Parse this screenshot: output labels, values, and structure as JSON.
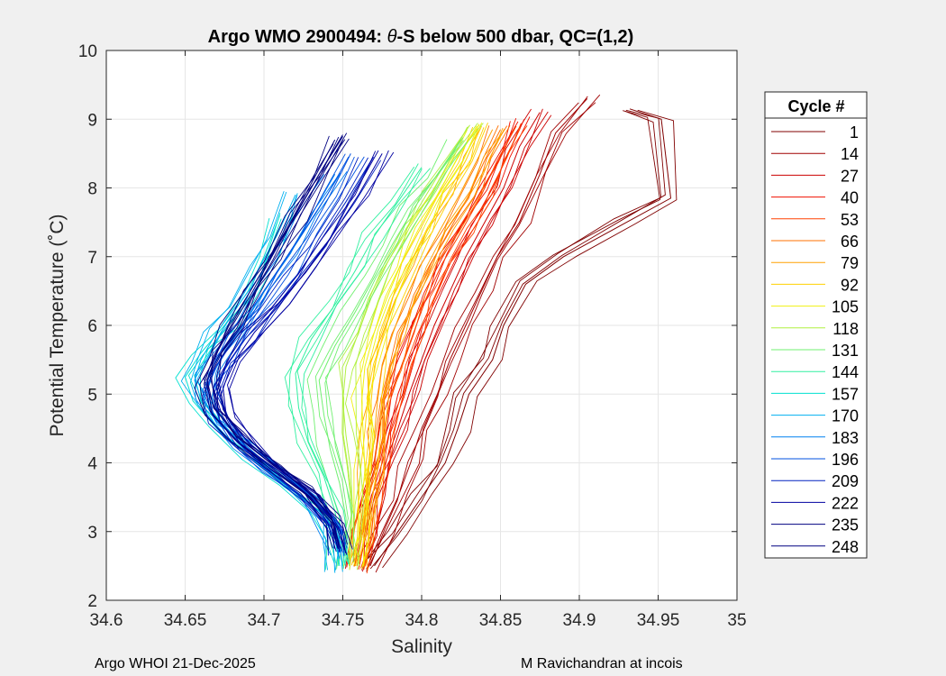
{
  "chart_data": {
    "type": "line",
    "title_prefix": "Argo WMO 2900494: ",
    "title_symbol": "θ",
    "title_suffix": "-S below 500 dbar,  QC=(1,2)",
    "xlabel": "Salinity",
    "ylabel": "Potential Temperature (˚C)",
    "xlim": [
      34.6,
      35
    ],
    "ylim": [
      2,
      10
    ],
    "xticks": [
      "34.6",
      "34.65",
      "34.7",
      "34.75",
      "34.8",
      "34.85",
      "34.9",
      "34.95",
      "35"
    ],
    "yticks": [
      "2",
      "3",
      "4",
      "5",
      "6",
      "7",
      "8",
      "9",
      "10"
    ],
    "grid": true,
    "legend_title": "Cycle #",
    "legend_position": "outside-right",
    "series": [
      {
        "name": "1",
        "color": "#800000",
        "points": [
          [
            34.932,
            9.15
          ],
          [
            34.952,
            9.0
          ],
          [
            34.958,
            7.85
          ],
          [
            34.93,
            7.5
          ],
          [
            34.89,
            7.0
          ],
          [
            34.866,
            6.6
          ],
          [
            34.852,
            6.0
          ],
          [
            34.845,
            5.5
          ],
          [
            34.83,
            5.0
          ],
          [
            34.823,
            4.5
          ],
          [
            34.815,
            4.0
          ],
          [
            34.8,
            3.5
          ],
          [
            34.785,
            3.0
          ],
          [
            34.77,
            2.5
          ]
        ]
      },
      {
        "name": "14",
        "color": "#a00000",
        "points": [
          [
            34.905,
            9.3
          ],
          [
            34.885,
            8.8
          ],
          [
            34.875,
            8.2
          ],
          [
            34.862,
            7.5
          ],
          [
            34.848,
            7.0
          ],
          [
            34.838,
            6.5
          ],
          [
            34.828,
            6.0
          ],
          [
            34.818,
            5.5
          ],
          [
            34.81,
            5.0
          ],
          [
            34.8,
            4.5
          ],
          [
            34.793,
            4.0
          ],
          [
            34.785,
            3.5
          ],
          [
            34.775,
            3.0
          ],
          [
            34.765,
            2.45
          ]
        ]
      },
      {
        "name": "27",
        "color": "#cc0000",
        "points": [
          [
            34.875,
            9.1
          ],
          [
            34.862,
            8.6
          ],
          [
            34.852,
            8.0
          ],
          [
            34.84,
            7.5
          ],
          [
            34.828,
            7.0
          ],
          [
            34.818,
            6.5
          ],
          [
            34.808,
            6.0
          ],
          [
            34.8,
            5.5
          ],
          [
            34.792,
            5.0
          ],
          [
            34.785,
            4.5
          ],
          [
            34.777,
            4.0
          ],
          [
            34.77,
            3.5
          ],
          [
            34.765,
            3.0
          ],
          [
            34.76,
            2.45
          ]
        ]
      },
      {
        "name": "40",
        "color": "#f01000",
        "points": [
          [
            34.865,
            9.0
          ],
          [
            34.855,
            8.5
          ],
          [
            34.845,
            8.0
          ],
          [
            34.833,
            7.5
          ],
          [
            34.82,
            7.0
          ],
          [
            34.81,
            6.5
          ],
          [
            34.8,
            6.0
          ],
          [
            34.793,
            5.5
          ],
          [
            34.785,
            5.0
          ],
          [
            34.78,
            4.5
          ],
          [
            34.775,
            4.0
          ],
          [
            34.768,
            3.5
          ],
          [
            34.762,
            3.0
          ],
          [
            34.758,
            2.5
          ]
        ]
      },
      {
        "name": "53",
        "color": "#ff4000",
        "points": [
          [
            34.86,
            8.9
          ],
          [
            34.848,
            8.4
          ],
          [
            34.838,
            7.9
          ],
          [
            34.826,
            7.4
          ],
          [
            34.813,
            6.9
          ],
          [
            34.803,
            6.4
          ],
          [
            34.795,
            5.9
          ],
          [
            34.787,
            5.4
          ],
          [
            34.78,
            4.9
          ],
          [
            34.776,
            4.4
          ],
          [
            34.772,
            3.9
          ],
          [
            34.768,
            3.4
          ],
          [
            34.764,
            2.9
          ],
          [
            34.76,
            2.45
          ]
        ]
      },
      {
        "name": "66",
        "color": "#ff7000",
        "points": [
          [
            34.85,
            8.85
          ],
          [
            34.84,
            8.4
          ],
          [
            34.83,
            7.9
          ],
          [
            34.818,
            7.4
          ],
          [
            34.806,
            6.9
          ],
          [
            34.796,
            6.4
          ],
          [
            34.788,
            5.9
          ],
          [
            34.78,
            5.4
          ],
          [
            34.775,
            4.9
          ],
          [
            34.772,
            4.4
          ],
          [
            34.77,
            3.9
          ],
          [
            34.766,
            3.4
          ],
          [
            34.762,
            2.9
          ],
          [
            34.759,
            2.5
          ]
        ]
      },
      {
        "name": "79",
        "color": "#ffa000",
        "points": [
          [
            34.845,
            8.85
          ],
          [
            34.835,
            8.4
          ],
          [
            34.824,
            7.9
          ],
          [
            34.812,
            7.4
          ],
          [
            34.8,
            6.9
          ],
          [
            34.79,
            6.4
          ],
          [
            34.782,
            5.9
          ],
          [
            34.775,
            5.4
          ],
          [
            34.772,
            4.9
          ],
          [
            34.77,
            4.4
          ],
          [
            34.768,
            3.9
          ],
          [
            34.765,
            3.4
          ],
          [
            34.762,
            2.9
          ],
          [
            34.758,
            2.5
          ]
        ]
      },
      {
        "name": "92",
        "color": "#ffd000",
        "points": [
          [
            34.838,
            8.9
          ],
          [
            34.828,
            8.4
          ],
          [
            34.816,
            7.9
          ],
          [
            34.804,
            7.4
          ],
          [
            34.793,
            6.9
          ],
          [
            34.784,
            6.4
          ],
          [
            34.776,
            5.9
          ],
          [
            34.77,
            5.4
          ],
          [
            34.768,
            4.9
          ],
          [
            34.768,
            4.4
          ],
          [
            34.766,
            3.9
          ],
          [
            34.764,
            3.4
          ],
          [
            34.762,
            2.9
          ],
          [
            34.758,
            2.5
          ]
        ]
      },
      {
        "name": "105",
        "color": "#f0f010",
        "points": [
          [
            34.835,
            8.9
          ],
          [
            34.822,
            8.4
          ],
          [
            34.81,
            7.9
          ],
          [
            34.798,
            7.4
          ],
          [
            34.787,
            6.9
          ],
          [
            34.778,
            6.4
          ],
          [
            34.77,
            5.9
          ],
          [
            34.764,
            5.4
          ],
          [
            34.762,
            4.9
          ],
          [
            34.763,
            4.4
          ],
          [
            34.764,
            3.9
          ],
          [
            34.762,
            3.4
          ],
          [
            34.76,
            2.9
          ],
          [
            34.757,
            2.5
          ]
        ]
      },
      {
        "name": "118",
        "color": "#b0f040",
        "points": [
          [
            34.83,
            8.9
          ],
          [
            34.816,
            8.4
          ],
          [
            34.803,
            7.9
          ],
          [
            34.79,
            7.4
          ],
          [
            34.778,
            6.9
          ],
          [
            34.768,
            6.4
          ],
          [
            34.76,
            5.9
          ],
          [
            34.752,
            5.4
          ],
          [
            34.75,
            4.9
          ],
          [
            34.752,
            4.4
          ],
          [
            34.755,
            3.9
          ],
          [
            34.756,
            3.4
          ],
          [
            34.755,
            2.9
          ],
          [
            34.754,
            2.5
          ]
        ]
      },
      {
        "name": "131",
        "color": "#70f070",
        "points": [
          [
            34.825,
            8.7
          ],
          [
            34.81,
            8.2
          ],
          [
            34.795,
            7.7
          ],
          [
            34.782,
            7.2
          ],
          [
            34.77,
            6.7
          ],
          [
            34.758,
            6.2
          ],
          [
            34.745,
            5.7
          ],
          [
            34.735,
            5.2
          ],
          [
            34.738,
            4.7
          ],
          [
            34.742,
            4.2
          ],
          [
            34.748,
            3.7
          ],
          [
            34.752,
            3.2
          ],
          [
            34.752,
            2.8
          ],
          [
            34.75,
            2.5
          ]
        ]
      },
      {
        "name": "144",
        "color": "#30f0a0",
        "points": [
          [
            34.8,
            8.3
          ],
          [
            34.785,
            7.8
          ],
          [
            34.77,
            7.3
          ],
          [
            34.758,
            6.8
          ],
          [
            34.745,
            6.3
          ],
          [
            34.73,
            5.8
          ],
          [
            34.72,
            5.3
          ],
          [
            34.722,
            4.8
          ],
          [
            34.728,
            4.3
          ],
          [
            34.738,
            3.8
          ],
          [
            34.745,
            3.3
          ],
          [
            34.748,
            2.9
          ],
          [
            34.747,
            2.5
          ]
        ]
      },
      {
        "name": "157",
        "color": "#00e0d0",
        "points": [
          [
            34.71,
            7.6
          ],
          [
            34.7,
            7.0
          ],
          [
            34.69,
            6.5
          ],
          [
            34.675,
            6.0
          ],
          [
            34.66,
            5.6
          ],
          [
            34.65,
            5.25
          ],
          [
            34.655,
            4.9
          ],
          [
            34.67,
            4.5
          ],
          [
            34.69,
            4.1
          ],
          [
            34.712,
            3.7
          ],
          [
            34.735,
            3.3
          ],
          [
            34.745,
            2.9
          ],
          [
            34.748,
            2.5
          ]
        ]
      },
      {
        "name": "170",
        "color": "#00b0f0",
        "points": [
          [
            34.72,
            7.9
          ],
          [
            34.708,
            7.3
          ],
          [
            34.696,
            6.8
          ],
          [
            34.683,
            6.3
          ],
          [
            34.67,
            5.9
          ],
          [
            34.66,
            5.5
          ],
          [
            34.656,
            5.2
          ],
          [
            34.662,
            4.8
          ],
          [
            34.68,
            4.4
          ],
          [
            34.7,
            4.0
          ],
          [
            34.725,
            3.6
          ],
          [
            34.74,
            3.2
          ],
          [
            34.744,
            2.85
          ],
          [
            34.745,
            2.4
          ]
        ]
      },
      {
        "name": "183",
        "color": "#0080f0",
        "points": [
          [
            34.745,
            8.2
          ],
          [
            34.73,
            7.6
          ],
          [
            34.715,
            7.0
          ],
          [
            34.7,
            6.5
          ],
          [
            34.686,
            6.0
          ],
          [
            34.673,
            5.6
          ],
          [
            34.665,
            5.3
          ],
          [
            34.662,
            4.9
          ],
          [
            34.67,
            4.6
          ],
          [
            34.69,
            4.2
          ],
          [
            34.712,
            3.8
          ],
          [
            34.735,
            3.4
          ],
          [
            34.744,
            3.0
          ],
          [
            34.748,
            2.6
          ]
        ]
      },
      {
        "name": "196",
        "color": "#0050e0",
        "points": [
          [
            34.755,
            8.5
          ],
          [
            34.742,
            7.9
          ],
          [
            34.728,
            7.3
          ],
          [
            34.712,
            6.8
          ],
          [
            34.697,
            6.3
          ],
          [
            34.683,
            5.9
          ],
          [
            34.672,
            5.5
          ],
          [
            34.664,
            5.1
          ],
          [
            34.668,
            4.7
          ],
          [
            34.683,
            4.3
          ],
          [
            34.702,
            3.9
          ],
          [
            34.725,
            3.5
          ],
          [
            34.742,
            3.1
          ],
          [
            34.748,
            2.7
          ]
        ]
      },
      {
        "name": "209",
        "color": "#0020c0",
        "points": [
          [
            34.768,
            8.4
          ],
          [
            34.752,
            7.8
          ],
          [
            34.735,
            7.2
          ],
          [
            34.72,
            6.7
          ],
          [
            34.703,
            6.2
          ],
          [
            34.688,
            5.8
          ],
          [
            34.676,
            5.4
          ],
          [
            34.668,
            5.0
          ],
          [
            34.672,
            4.6
          ],
          [
            34.688,
            4.2
          ],
          [
            34.708,
            3.8
          ],
          [
            34.73,
            3.4
          ],
          [
            34.745,
            3.0
          ],
          [
            34.748,
            2.7
          ]
        ]
      },
      {
        "name": "222",
        "color": "#0000a0",
        "points": [
          [
            34.775,
            8.5
          ],
          [
            34.76,
            7.9
          ],
          [
            34.743,
            7.3
          ],
          [
            34.727,
            6.8
          ],
          [
            34.71,
            6.3
          ],
          [
            34.694,
            5.9
          ],
          [
            34.682,
            5.5
          ],
          [
            34.674,
            5.1
          ],
          [
            34.676,
            4.7
          ],
          [
            34.69,
            4.3
          ],
          [
            34.71,
            3.9
          ],
          [
            34.732,
            3.5
          ],
          [
            34.745,
            3.1
          ],
          [
            34.748,
            2.7
          ]
        ]
      },
      {
        "name": "235",
        "color": "#000080",
        "points": [
          [
            34.75,
            8.75
          ],
          [
            34.735,
            8.2
          ],
          [
            34.72,
            7.6
          ],
          [
            34.705,
            7.0
          ],
          [
            34.693,
            6.5
          ],
          [
            34.68,
            6.0
          ],
          [
            34.67,
            5.6
          ],
          [
            34.664,
            5.2
          ],
          [
            34.668,
            4.8
          ],
          [
            34.683,
            4.4
          ],
          [
            34.704,
            4.0
          ],
          [
            34.728,
            3.6
          ],
          [
            34.743,
            3.2
          ],
          [
            34.748,
            2.8
          ]
        ]
      },
      {
        "name": "248",
        "color": "#000080",
        "points": [
          [
            34.745,
            8.7
          ],
          [
            34.732,
            8.15
          ],
          [
            34.718,
            7.55
          ],
          [
            34.703,
            6.95
          ],
          [
            34.69,
            6.45
          ],
          [
            34.678,
            5.95
          ],
          [
            34.668,
            5.55
          ],
          [
            34.662,
            5.15
          ],
          [
            34.666,
            4.75
          ],
          [
            34.681,
            4.35
          ],
          [
            34.702,
            3.95
          ],
          [
            34.726,
            3.55
          ],
          [
            34.742,
            3.15
          ],
          [
            34.747,
            2.75
          ]
        ]
      }
    ]
  },
  "footer": {
    "left": "Argo WHOI 21-Dec-2025",
    "right": "M Ravichandran at incois"
  }
}
